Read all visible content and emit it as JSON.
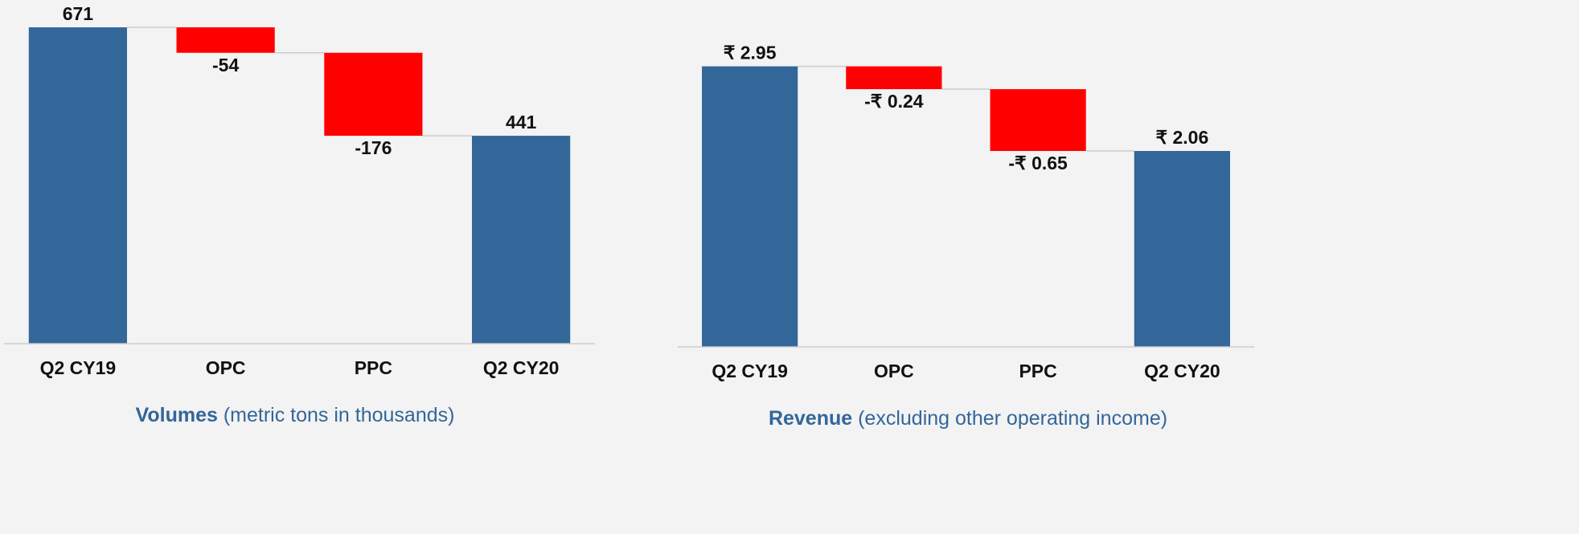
{
  "chart_data": [
    {
      "type": "waterfall",
      "title": "Volumes",
      "subtitle": "(metric tons in thousands)",
      "categories": [
        "Q2 CY19",
        "OPC",
        "PPC",
        "Q2 CY20"
      ],
      "measure": [
        "total",
        "relative",
        "relative",
        "total"
      ],
      "values": [
        671,
        -54,
        -176,
        441
      ],
      "total_color": "#336699",
      "decrease_color": "#ff0000",
      "ylim": [
        0,
        700
      ]
    },
    {
      "type": "waterfall",
      "title": "Revenue",
      "subtitle": "(excluding other operating income)",
      "categories": [
        "Q2 CY19",
        "OPC",
        "PPC",
        "Q2 CY20"
      ],
      "measure": [
        "total",
        "relative",
        "relative",
        "total"
      ],
      "values": [
        2.95,
        -0.24,
        -0.65,
        2.06
      ],
      "value_labels": [
        "₹ 2.95",
        "-₹ 0.24",
        "-₹ 0.65",
        "₹ 2.06"
      ],
      "total_color": "#336699",
      "decrease_color": "#ff0000",
      "ylim": [
        0,
        3.2
      ]
    }
  ]
}
